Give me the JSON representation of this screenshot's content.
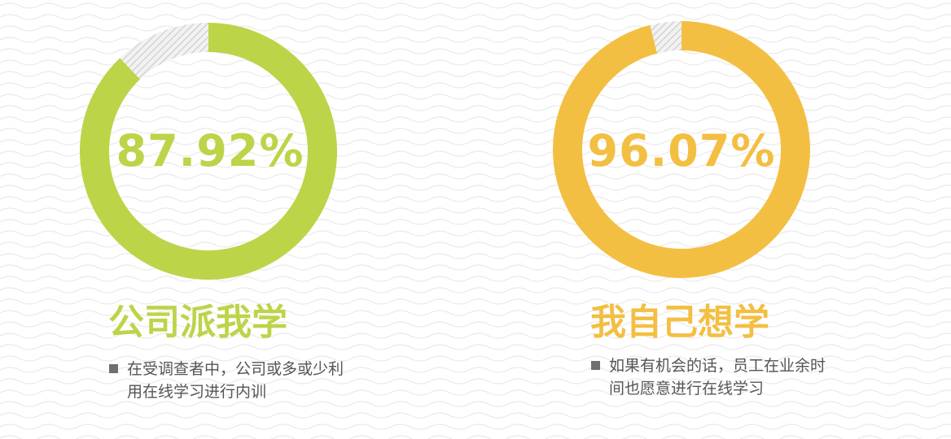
{
  "chart_data": [
    {
      "type": "pie",
      "variant": "donut",
      "value_percent": 87.92,
      "center_label": "87.92%",
      "colors": {
        "filled": "#bcd448",
        "remainder": "hatched-gray"
      },
      "title": "公司派我学",
      "description": "在受调查者中，公司或多或少利用在线学习进行内训"
    },
    {
      "type": "pie",
      "variant": "donut",
      "value_percent": 96.07,
      "center_label": "96.07%",
      "colors": {
        "filled": "#f3bf42",
        "remainder": "hatched-gray"
      },
      "title": "我自己想学",
      "description": "如果有机会的话，员工在业余时间也愿意进行在线学习"
    }
  ],
  "background": {
    "pattern": "light-gray-wavy-lines"
  }
}
